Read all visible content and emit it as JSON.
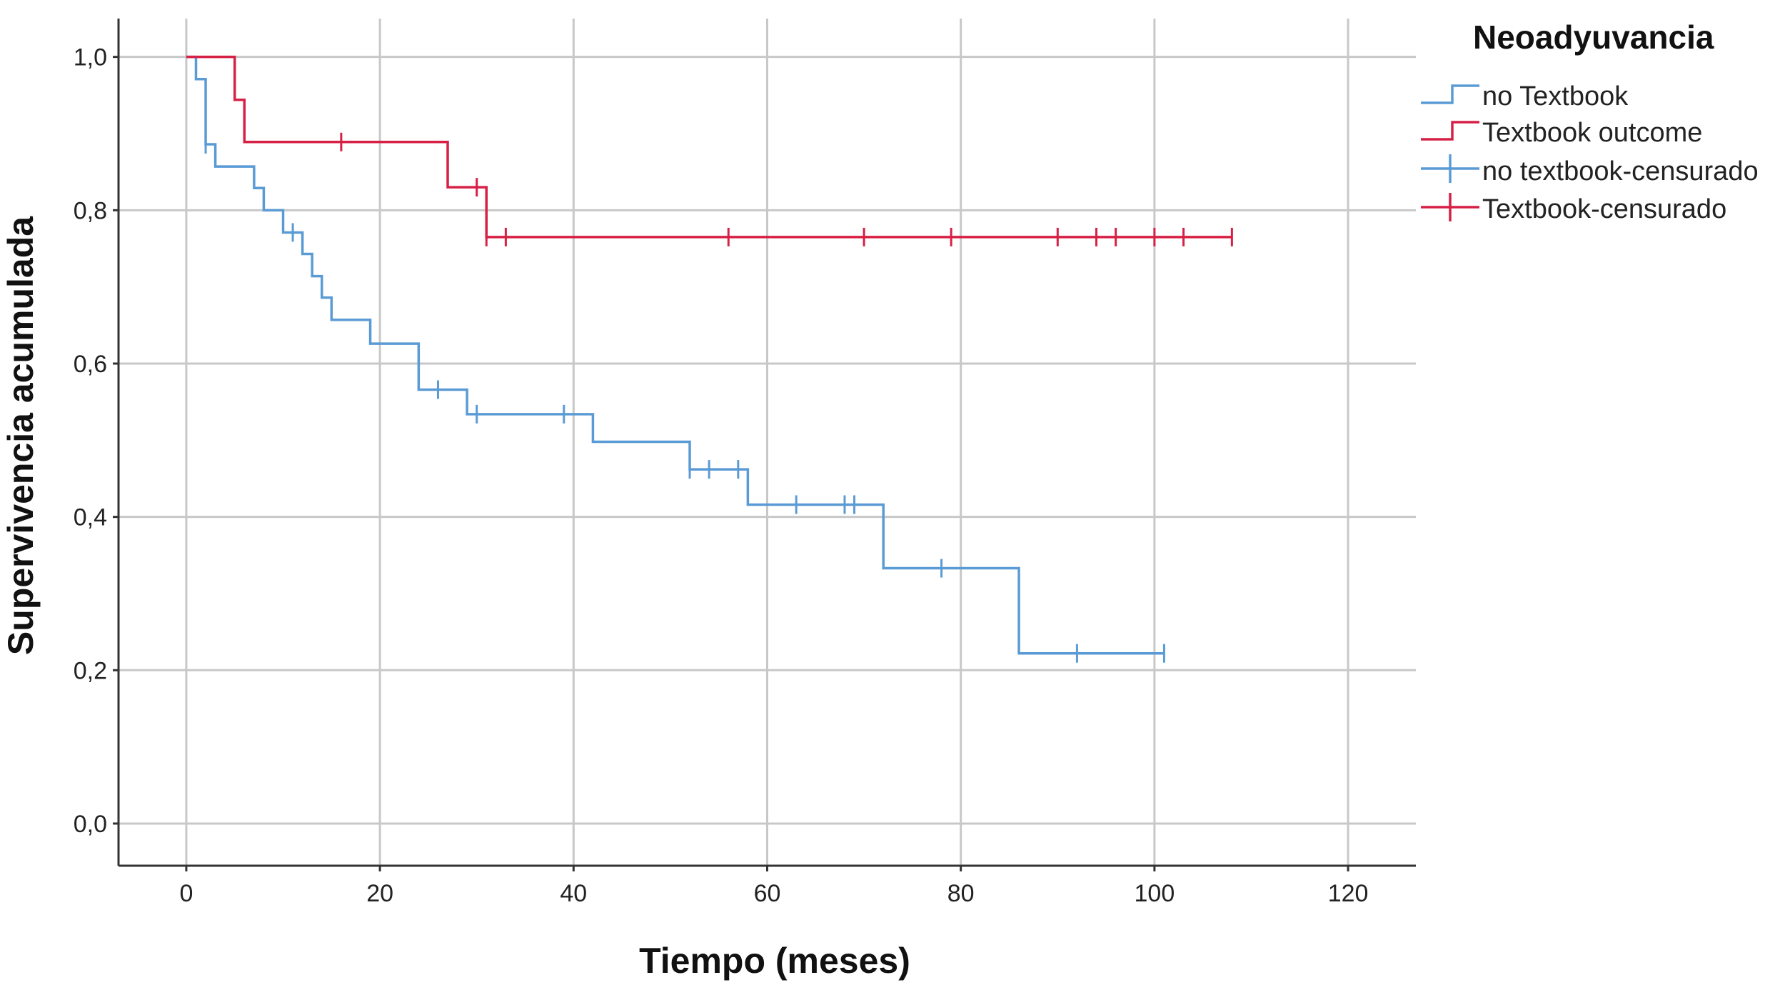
{
  "chart_data": {
    "type": "line",
    "subtype": "kaplan-meier step",
    "xlabel": "Tiempo (meses)",
    "ylabel": "Supervivencia acumulada",
    "xlim": [
      -7,
      127
    ],
    "ylim": [
      -0.055,
      1.05
    ],
    "xticks": [
      0,
      20,
      40,
      60,
      80,
      100,
      120
    ],
    "xtick_labels": [
      "0",
      "20",
      "40",
      "60",
      "80",
      "100",
      "120"
    ],
    "yticks": [
      0.0,
      0.2,
      0.4,
      0.6,
      0.8,
      1.0
    ],
    "ytick_labels": [
      "0,0",
      "0,2",
      "0,4",
      "0,6",
      "0,8",
      "1,0"
    ],
    "grid": true,
    "legend": {
      "title": "Neoadyuvancia",
      "placement": "right",
      "entries": [
        {
          "label": "no Textbook",
          "kind": "step",
          "color": "#5b9bd5"
        },
        {
          "label": "Textbook outcome",
          "kind": "step",
          "color": "#d62045"
        },
        {
          "label": "no textbook-censurado",
          "kind": "censor",
          "color": "#5b9bd5"
        },
        {
          "label": "Textbook-censurado",
          "kind": "censor",
          "color": "#d62045"
        }
      ]
    },
    "series": [
      {
        "name": "no Textbook",
        "color": "#5b9bd5",
        "steps": [
          [
            0,
            1.0
          ],
          [
            1,
            0.971
          ],
          [
            2,
            0.886
          ],
          [
            3,
            0.857
          ],
          [
            7,
            0.829
          ],
          [
            8,
            0.8
          ],
          [
            10,
            0.771
          ],
          [
            12,
            0.743
          ],
          [
            13,
            0.714
          ],
          [
            14,
            0.686
          ],
          [
            15,
            0.657
          ],
          [
            19,
            0.626
          ],
          [
            24,
            0.566
          ],
          [
            29,
            0.534
          ],
          [
            42,
            0.498
          ],
          [
            52,
            0.462
          ],
          [
            58,
            0.416
          ],
          [
            72,
            0.333
          ],
          [
            86,
            0.222
          ],
          [
            101,
            0.222
          ]
        ],
        "censored": [
          [
            2,
            0.886
          ],
          [
            11,
            0.771
          ],
          [
            26,
            0.566
          ],
          [
            30,
            0.534
          ],
          [
            39,
            0.534
          ],
          [
            52,
            0.462
          ],
          [
            54,
            0.462
          ],
          [
            57,
            0.462
          ],
          [
            63,
            0.416
          ],
          [
            68,
            0.416
          ],
          [
            69,
            0.416
          ],
          [
            78,
            0.333
          ],
          [
            92,
            0.222
          ],
          [
            101,
            0.222
          ]
        ]
      },
      {
        "name": "Textbook outcome",
        "color": "#d62045",
        "steps": [
          [
            0,
            1.0
          ],
          [
            5,
            0.944
          ],
          [
            6,
            0.889
          ],
          [
            27,
            0.83
          ],
          [
            31,
            0.765
          ],
          [
            108,
            0.765
          ]
        ],
        "censored": [
          [
            16,
            0.889
          ],
          [
            30,
            0.83
          ],
          [
            31,
            0.765
          ],
          [
            33,
            0.765
          ],
          [
            56,
            0.765
          ],
          [
            70,
            0.765
          ],
          [
            79,
            0.765
          ],
          [
            90,
            0.765
          ],
          [
            94,
            0.765
          ],
          [
            96,
            0.765
          ],
          [
            100,
            0.765
          ],
          [
            103,
            0.765
          ],
          [
            108,
            0.765
          ]
        ]
      }
    ]
  }
}
